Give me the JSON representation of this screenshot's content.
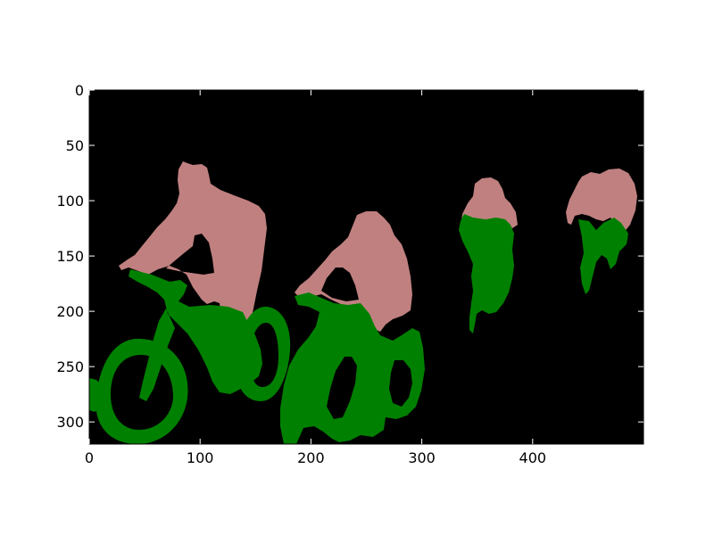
{
  "figure": {
    "background": "#ffffff",
    "image_background": "#000000",
    "axis_color": "#000000"
  },
  "segmentation": {
    "classes": [
      {
        "name": "person",
        "color": "#c08080"
      },
      {
        "name": "bicycle",
        "color": "#008000"
      }
    ]
  },
  "axes": {
    "x": {
      "range": [
        0,
        500
      ],
      "ticks": [
        0,
        100,
        200,
        300,
        400
      ],
      "tick_labels": [
        "0",
        "100",
        "200",
        "300",
        "400"
      ]
    },
    "y": {
      "range": [
        0,
        320
      ],
      "inverted": true,
      "ticks": [
        0,
        50,
        100,
        150,
        200,
        250,
        300
      ],
      "tick_labels": [
        "0",
        "50",
        "100",
        "150",
        "200",
        "250",
        "300"
      ]
    }
  }
}
